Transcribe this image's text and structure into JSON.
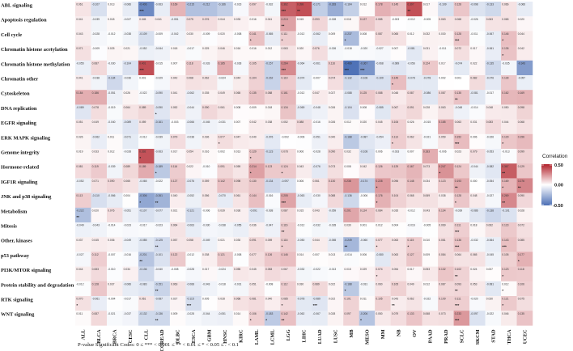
{
  "chart_data": {
    "type": "heatmap",
    "title": "",
    "rows": [
      "ABL signaling",
      "Apoptosis regulation",
      "Cell cycle",
      "Chromatin histone acetylation",
      "Chromatin histone methylation",
      "Chromatin other",
      "Cytoskeleton",
      "DNA replication",
      "EGFR signaling",
      "ERK MAPK signaling",
      "Genome integrity",
      "Hormone-related",
      "IGF1R signaling",
      "JNK and p38 signaling",
      "Metabolism",
      "Mitosis",
      "Other, kinases",
      "p53 pathway",
      "PI3K/MTOR signaling",
      "Protein stability and degradation",
      "RTK signaling",
      "WNT signaling"
    ],
    "columns": [
      "ALL",
      "BLCA",
      "BRCA",
      "CESC",
      "CLL",
      "COREAD",
      "DLBC",
      "ESCA",
      "GBM",
      "HNSC",
      "KIRC",
      "LAML",
      "LCML",
      "LGG",
      "LIHC",
      "LUAD",
      "LUSC",
      "MB",
      "MESO",
      "MM",
      "NB",
      "OV",
      "PAAD",
      "PRAD",
      "SCLC",
      "SKCM",
      "STAD",
      "THCA",
      "UCEC"
    ],
    "values": [
      [
        0.061,
        -0.107,
        0.013,
        -0.066,
        -0.406,
        -0.063,
        0.169,
        -0.215,
        -0.212,
        -0.166,
        -0.023,
        0.097,
        -0.032,
        0.362,
        0.398,
        -0.171,
        -0.283,
        -0.164,
        0.012,
        0.178,
        0.145,
        0.397,
        0.017,
        -0.109,
        0.128,
        -0.098,
        -0.133,
        0.066,
        -0.066
      ],
      [
        0.041,
        -0.039,
        0.018,
        -0.027,
        0.045,
        0.041,
        -0.051,
        0.075,
        0.076,
        0.044,
        0.033,
        0.016,
        0.041,
        0.213,
        0.015,
        0.093,
        -0.028,
        0.018,
        0.127,
        0.085,
        -0.003,
        -0.012,
        -0.005,
        0.063,
        0.068,
        -0.026,
        0.063,
        0.065,
        0.02
      ],
      [
        0.043,
        -0.028,
        -0.012,
        -0.038,
        -0.109,
        -0.009,
        -0.042,
        0.03,
        -0.009,
        0.02,
        -0.008,
        0.141,
        -0.065,
        0.111,
        -0.012,
        -0.062,
        0.009,
        -0.237,
        0.008,
        0.087,
        0.065,
        0.012,
        0.032,
        0.03,
        0.128,
        -0.011,
        -0.067,
        0.146,
        0.044
      ],
      [
        0.071,
        -0.009,
        0.025,
        0.021,
        -0.052,
        -0.044,
        0.018,
        -0.017,
        0.025,
        0.046,
        0.016,
        0.016,
        0.012,
        0.063,
        0.02,
        0.076,
        -0.026,
        -0.018,
        -0.02,
        -0.027,
        0.007,
        -0.081,
        0.031,
        -0.011,
        0.072,
        0.017,
        -0.061,
        0.135,
        0.042
      ],
      [
        -0.055,
        0.087,
        -0.03,
        -0.104,
        0.401,
        -0.015,
        0.007,
        0.118,
        -0.033,
        0.185,
        -0.028,
        0.105,
        -0.157,
        0.264,
        -0.064,
        -0.061,
        0.116,
        -0.489,
        -0.367,
        -0.068,
        -0.089,
        -0.056,
        0.124,
        0.017,
        -0.074,
        0.022,
        -0.135,
        -0.035,
        -0.343
      ],
      [
        0.041,
        -0.038,
        -0.134,
        -0.036,
        0.001,
        -0.029,
        0.042,
        0.068,
        0.062,
        -0.024,
        0.044,
        0.104,
        -0.152,
        0.119,
        -0.074,
        -0.007,
        0.074,
        -0.132,
        -0.108,
        -0.109,
        0.149,
        -0.078,
        -0.078,
        0.002,
        0.001,
        0.082,
        -0.076,
        0.128,
        -0.057
      ],
      [
        0.184,
        0.186,
        -0.051,
        0.026,
        -0.022,
        -0.09,
        0.041,
        -0.062,
        0.035,
        0.049,
        0.065,
        0.135,
        0.088,
        0.161,
        -0.012,
        0.047,
        0.027,
        -0.088,
        0.125,
        0.088,
        0.048,
        0.087,
        -0.086,
        0.087,
        0.135,
        -0.081,
        -0.017,
        0.162,
        0.169
      ],
      [
        -0.089,
        0.078,
        -0.019,
        0.064,
        0.089,
        -0.09,
        0.052,
        -0.044,
        0.09,
        0.061,
        0.008,
        0.009,
        0.018,
        0.134,
        -0.069,
        -0.048,
        0.026,
        -0.104,
        0.008,
        -0.085,
        0.067,
        0.091,
        0.028,
        0.063,
        -0.048,
        -0.014,
        0.048,
        0.05,
        0.098
      ],
      [
        0.051,
        0.049,
        -0.04,
        -0.089,
        0.059,
        -0.161,
        -0.003,
        -0.066,
        -0.045,
        -0.031,
        0.007,
        0.042,
        0.038,
        0.052,
        0.088,
        -0.016,
        0.026,
        0.012,
        0.02,
        0.045,
        0.106,
        0.026,
        -0.015,
        0.185,
        0.063,
        0.031,
        0.083,
        0.044,
        0.068
      ],
      [
        0.026,
        -0.062,
        0.011,
        -0.071,
        -0.012,
        -0.039,
        0.079,
        -0.038,
        0.036,
        0.077,
        0.047,
        0.04,
        -0.076,
        -0.002,
        -0.006,
        -0.051,
        0.04,
        -0.188,
        -0.087,
        -0.054,
        0.113,
        0.062,
        -0.021,
        0.059,
        0.152,
        0.006,
        -0.026,
        0.129,
        0.156
      ],
      [
        0.019,
        0.033,
        0.012,
        -0.028,
        0.392,
        -0.063,
        0.017,
        0.054,
        0.016,
        0.002,
        0.013,
        0.129,
        -0.123,
        0.078,
        0.006,
        -0.028,
        0.09,
        0.032,
        -0.108,
        0.006,
        -0.033,
        0.007,
        0.183,
        -0.006,
        0.023,
        0.079,
        -0.053,
        -0.013,
        0.099
      ],
      [
        0.081,
        0.119,
        -0.039,
        0.089,
        0.189,
        -0.189,
        0.116,
        0.022,
        -0.01,
        0.091,
        0.059,
        0.214,
        0.123,
        0.124,
        0.043,
        -0.076,
        0.073,
        0.008,
        0.042,
        0.126,
        0.129,
        0.167,
        0.073,
        0.247,
        0.124,
        -0.044,
        -0.082,
        0.367,
        0.129
      ],
      [
        -0.052,
        0.071,
        0.09,
        0.065,
        -0.065,
        -0.022,
        0.127,
        -0.076,
        0.059,
        0.142,
        0.098,
        0.13,
        -0.134,
        -0.097,
        0.006,
        0.061,
        0.13,
        0.238,
        -0.174,
        0.228,
        0.096,
        0.148,
        0.034,
        0.123,
        0.193,
        0.0,
        -0.054,
        0.169,
        0.276
      ],
      [
        0.113,
        -0.11,
        -0.066,
        0.004,
        -0.306,
        -0.261,
        0.04,
        -0.052,
        0.056,
        -0.07,
        0.061,
        0.144,
        -0.016,
        0.205,
        -0.063,
        -0.03,
        0.088,
        -0.136,
        -0.006,
        0.176,
        0.104,
        0.068,
        0.069,
        0.038,
        0.128,
        0.048,
        -0.027,
        0.269,
        0.09
      ],
      [
        -0.222,
        0.02,
        0.076,
        -0.051,
        -0.107,
        -0.077,
        0.021,
        -0.121,
        -0.006,
        0.039,
        0.036,
        -0.091,
        -0.038,
        0.087,
        0.015,
        0.043,
        -0.059,
        0.201,
        0.124,
        0.084,
        0.035,
        -0.012,
        0.043,
        0.134,
        -0.039,
        -0.086,
        -0.138,
        -0.101,
        0.028
      ],
      [
        -0.049,
        -0.043,
        -0.014,
        -0.023,
        -0.017,
        -0.023,
        0.064,
        -0.063,
        -0.03,
        -0.038,
        -0.055,
        0.036,
        -0.047,
        0.116,
        -0.012,
        -0.032,
        -0.028,
        0.03,
        0.001,
        0.012,
        0.004,
        -0.016,
        -0.005,
        0.069,
        0.111,
        0.018,
        0.062,
        0.123,
        0.072
      ],
      [
        0.037,
        0.045,
        0.036,
        -0.049,
        -0.085,
        -0.125,
        0.057,
        0.058,
        -0.049,
        0.021,
        0.03,
        0.091,
        0.059,
        0.116,
        -0.05,
        0.044,
        -0.065,
        -0.249,
        -0.06,
        0.077,
        0.063,
        0.115,
        0.01,
        0.081,
        0.136,
        -0.032,
        -0.064,
        0.143,
        0.085
      ],
      [
        -0.027,
        0.112,
        -0.007,
        -0.016,
        -0.201,
        -0.101,
        0.122,
        -0.012,
        0.038,
        0.121,
        -0.008,
        0.077,
        0.126,
        0.146,
        0.014,
        0.007,
        0.013,
        -0.014,
        0.006,
        -0.08,
        0.063,
        0.127,
        0.009,
        0.084,
        0.064,
        0.065,
        -0.045,
        0.105,
        0.177
      ],
      [
        0.044,
        0.083,
        -0.01,
        0.034,
        -0.136,
        -0.04,
        -0.008,
        -0.028,
        0.017,
        -0.024,
        0.055,
        0.045,
        0.083,
        0.067,
        -0.032,
        -0.022,
        -0.013,
        0.015,
        0.029,
        0.074,
        0.054,
        0.017,
        0.053,
        0.132,
        0.102,
        0.024,
        0.007,
        0.123,
        0.118
      ],
      [
        -0.012,
        0.128,
        0.037,
        -0.066,
        -0.083,
        -0.151,
        0.063,
        -0.068,
        -0.043,
        -0.018,
        -0.031,
        0.051,
        -0.008,
        0.112,
        0.03,
        0.089,
        0.022,
        -0.188,
        -0.031,
        0.06,
        0.105,
        0.049,
        0.012,
        0.087,
        0.093,
        0.053,
        -0.081,
        0.012,
        0.106
      ],
      [
        0.07,
        -0.061,
        -0.004,
        -0.017,
        0.061,
        -0.087,
        0.027,
        -0.115,
        0.005,
        0.028,
        0.068,
        0.081,
        0.04,
        0.085,
        -0.078,
        -0.089,
        0.022,
        0.101,
        0.011,
        0.105,
        0.043,
        0.062,
        -0.022,
        0.109,
        0.111,
        -0.02,
        0.03,
        0.121,
        0.075
      ],
      [
        0.011,
        0.087,
        -0.021,
        -0.037,
        -0.132,
        -0.136,
        0.009,
        -0.028,
        -0.044,
        -0.051,
        0.014,
        0.106,
        -0.183,
        0.142,
        -0.062,
        -0.067,
        0.028,
        0.097,
        -0.206,
        0.05,
        0.079,
        0.133,
        0.068,
        0.073,
        0.233,
        -0.097,
        -0.022,
        0.046,
        0.135
      ]
    ],
    "significance": [
      [
        "",
        "",
        "",
        "",
        "***",
        "",
        "",
        "",
        "",
        "",
        "",
        "",
        "",
        "***",
        "**",
        "",
        "",
        "",
        "",
        "",
        "",
        "**",
        "",
        "",
        "",
        "",
        "",
        "",
        ""
      ],
      [
        "",
        "",
        "",
        "",
        "",
        "",
        "",
        "",
        "",
        "",
        "",
        "",
        "",
        "**",
        "",
        "",
        "",
        "",
        "",
        "",
        "",
        "",
        "",
        "",
        "",
        "",
        "",
        "",
        ""
      ],
      [
        "",
        "",
        "",
        "",
        "",
        "",
        "",
        "",
        "",
        "",
        "",
        "*",
        "",
        "*",
        "",
        "",
        "",
        "*",
        "",
        "",
        "",
        "",
        "",
        "",
        "***",
        "",
        "",
        "*",
        ""
      ],
      [
        "",
        "",
        "",
        "",
        "",
        "",
        "",
        "",
        "",
        "",
        "",
        "",
        "",
        "",
        "",
        "",
        "",
        "",
        "",
        "",
        "",
        "",
        "",
        "",
        "",
        "",
        "",
        "*",
        ""
      ],
      [
        "",
        "",
        "",
        "",
        "***",
        "",
        "",
        "",
        "",
        "",
        "",
        "",
        "",
        "***",
        "",
        "",
        "",
        "***",
        "***",
        "",
        "",
        "",
        "",
        "",
        "",
        "",
        "",
        "",
        ""
      ],
      [
        "",
        "",
        "",
        "",
        "",
        "",
        "",
        "",
        "",
        "",
        "",
        "",
        "",
        "",
        "",
        "",
        "",
        "",
        "",
        "",
        "*",
        "",
        "",
        "",
        "",
        "",
        "",
        "",
        ""
      ],
      [
        "",
        "",
        "",
        "",
        "",
        "",
        "",
        "",
        "",
        "",
        "",
        "",
        "",
        "",
        "",
        "",
        "",
        "",
        "",
        "",
        "",
        "",
        "",
        "",
        "**",
        "",
        "",
        "",
        ""
      ],
      [
        "",
        "",
        "",
        "",
        "",
        "*",
        "",
        "",
        "",
        "",
        "",
        "",
        "",
        "",
        "",
        "",
        "",
        "",
        "",
        "",
        "",
        "",
        "",
        "",
        "",
        "",
        "",
        "",
        ""
      ],
      [
        "",
        "",
        "",
        "",
        "",
        "",
        "",
        "",
        "",
        "",
        "",
        "",
        "",
        "",
        "",
        "",
        "",
        "",
        "",
        "",
        "",
        "",
        "",
        "",
        "",
        "",
        "",
        "",
        ""
      ],
      [
        "",
        "",
        "",
        "",
        "",
        "",
        "",
        "",
        "",
        "*",
        "",
        "",
        "",
        "",
        "",
        "",
        "",
        "",
        "",
        "",
        "*",
        "",
        "",
        "",
        "***",
        "",
        "",
        "*",
        ""
      ],
      [
        "",
        "",
        "",
        "",
        "*",
        "",
        "",
        "",
        "",
        "",
        "",
        "*",
        "",
        "",
        "",
        "",
        "",
        "",
        "",
        "",
        "",
        "",
        "",
        "",
        "",
        "",
        "",
        "",
        ""
      ],
      [
        "",
        "",
        "",
        "",
        "",
        "*",
        "",
        "",
        "",
        "",
        "",
        "*",
        "",
        "*",
        "",
        "",
        "",
        "",
        "",
        "",
        "",
        "",
        "",
        "*",
        "",
        "",
        "",
        "**",
        ""
      ],
      [
        "",
        "",
        "",
        "",
        "",
        "",
        "",
        "",
        "",
        "",
        "",
        "",
        "",
        "",
        "",
        "",
        "",
        "",
        "",
        "*",
        "",
        "",
        "",
        "",
        "**",
        "",
        "",
        "*",
        "**"
      ],
      [
        "",
        "",
        "",
        "",
        "*",
        "**",
        "",
        "",
        "",
        "",
        "",
        "",
        "",
        "***",
        "",
        "",
        "",
        "",
        "",
        "*",
        "",
        "",
        "",
        "",
        "*",
        "",
        "",
        "**",
        ""
      ],
      [
        "**",
        "",
        "",
        "",
        "",
        "",
        "",
        "",
        "",
        "",
        "",
        "",
        "",
        "",
        "",
        "",
        "",
        "",
        "",
        "",
        "",
        "",
        "",
        "",
        "",
        "",
        "",
        "",
        ""
      ],
      [
        "",
        "",
        "",
        "",
        "",
        "",
        "",
        "",
        "",
        "",
        "",
        "",
        "",
        "**",
        "",
        "",
        "",
        "",
        "",
        "",
        "",
        "",
        "",
        "",
        "***",
        "",
        "",
        "",
        ""
      ],
      [
        "",
        "",
        "",
        "",
        "",
        "**",
        "",
        "",
        "",
        "",
        "",
        "",
        "",
        "*",
        "",
        "",
        "",
        "**",
        "",
        "*",
        "",
        "*",
        "",
        "",
        "***",
        "",
        "",
        "***",
        ""
      ],
      [
        "",
        "",
        "",
        "",
        "**",
        "",
        "",
        "",
        "",
        "",
        "",
        "",
        "",
        "",
        "",
        "",
        "",
        "",
        "",
        "",
        "",
        "",
        "",
        "",
        "",
        "",
        "",
        "",
        "*"
      ],
      [
        "",
        "",
        "",
        "",
        "",
        "",
        "",
        "",
        "",
        "",
        "",
        "",
        "",
        "",
        "",
        "",
        "",
        "",
        "",
        "*",
        "",
        "",
        "",
        "",
        "**",
        "",
        "",
        "*",
        ""
      ],
      [
        "",
        "",
        "",
        "",
        "",
        "**",
        "",
        "",
        "",
        "",
        "",
        "",
        "",
        "",
        "",
        "",
        "",
        "*",
        "",
        "",
        "",
        "",
        "",
        "",
        "**",
        "",
        "",
        "*",
        ""
      ],
      [
        "*",
        "",
        "",
        "",
        "",
        "",
        "",
        "***",
        "",
        "",
        "",
        "",
        "",
        "*",
        "",
        "***",
        "",
        "",
        "",
        "",
        "**",
        "",
        "",
        "",
        "***",
        "",
        "",
        "*",
        ""
      ],
      [
        "",
        "",
        "",
        "",
        "",
        "**",
        "",
        "",
        "",
        "",
        "",
        "*",
        "*",
        "**",
        "",
        "",
        "",
        "",
        "*",
        "",
        "",
        "",
        "",
        "",
        "***",
        "",
        "",
        "",
        ""
      ]
    ],
    "legend": {
      "title": "Correlation",
      "ticks": [
        "0.50",
        "0.00",
        "-0.50"
      ],
      "range": [
        -0.5,
        0.5
      ],
      "low_color": "#4b6fb5",
      "mid_color": "#ffffff",
      "high_color": "#b2222b",
      "placement": "right"
    },
    "footnote": "P-value Significant Codes: 0 ≤ *** < 0.001 ≤ ** < 0.01 ≤ * < 0.05 ≤ . < 0.1"
  }
}
